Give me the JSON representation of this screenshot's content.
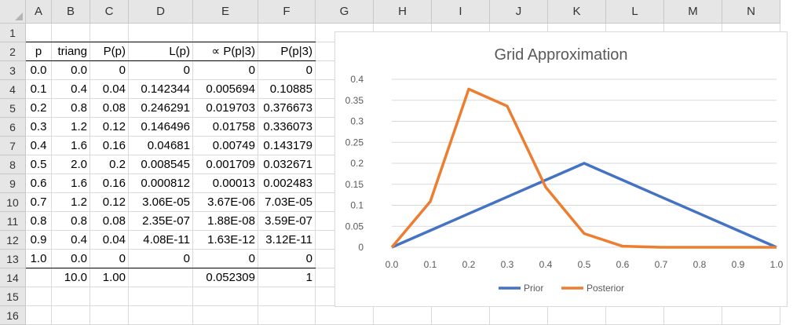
{
  "columns": [
    "A",
    "B",
    "C",
    "D",
    "E",
    "F",
    "G",
    "H",
    "I",
    "J",
    "K",
    "L",
    "M",
    "N"
  ],
  "rows": [
    "1",
    "2",
    "3",
    "4",
    "5",
    "6",
    "7",
    "8",
    "9",
    "10",
    "11",
    "12",
    "13",
    "14",
    "15",
    "16"
  ],
  "table": {
    "headers": [
      "p",
      "triang",
      "P(p)",
      "L(p)",
      "∝ P(p|3)",
      "P(p|3)"
    ],
    "data": [
      [
        "0.0",
        "0.0",
        "0",
        "0",
        "0",
        "0"
      ],
      [
        "0.1",
        "0.4",
        "0.04",
        "0.142344",
        "0.005694",
        "0.10885"
      ],
      [
        "0.2",
        "0.8",
        "0.08",
        "0.246291",
        "0.019703",
        "0.376673"
      ],
      [
        "0.3",
        "1.2",
        "0.12",
        "0.146496",
        "0.01758",
        "0.336073"
      ],
      [
        "0.4",
        "1.6",
        "0.16",
        "0.04681",
        "0.00749",
        "0.143179"
      ],
      [
        "0.5",
        "2.0",
        "0.2",
        "0.008545",
        "0.001709",
        "0.032671"
      ],
      [
        "0.6",
        "1.6",
        "0.16",
        "0.000812",
        "0.00013",
        "0.002483"
      ],
      [
        "0.7",
        "1.2",
        "0.12",
        "3.06E-05",
        "3.67E-06",
        "7.03E-05"
      ],
      [
        "0.8",
        "0.8",
        "0.08",
        "2.35E-07",
        "1.88E-08",
        "3.59E-07"
      ],
      [
        "0.9",
        "0.4",
        "0.04",
        "4.08E-11",
        "1.63E-12",
        "3.12E-11"
      ],
      [
        "1.0",
        "0.0",
        "0",
        "0",
        "0",
        "0"
      ]
    ],
    "totals": [
      "",
      "10.0",
      "1.00",
      "",
      "0.052309",
      "1"
    ]
  },
  "chart_data": {
    "type": "line",
    "title": "Grid Approximation",
    "x": [
      "0.0",
      "0.1",
      "0.2",
      "0.3",
      "0.4",
      "0.5",
      "0.6",
      "0.7",
      "0.8",
      "0.9",
      "1.0"
    ],
    "yticks": [
      "0",
      "0.05",
      "0.1",
      "0.15",
      "0.2",
      "0.25",
      "0.3",
      "0.35",
      "0.4"
    ],
    "ylim": [
      0,
      0.4
    ],
    "grid": true,
    "legend": "bottom",
    "series": [
      {
        "name": "Prior",
        "color": "#4472c4",
        "values": [
          0,
          0.04,
          0.08,
          0.12,
          0.16,
          0.2,
          0.16,
          0.12,
          0.08,
          0.04,
          0
        ]
      },
      {
        "name": "Posterior",
        "color": "#ed7d31",
        "values": [
          0,
          0.10885,
          0.376673,
          0.336073,
          0.143179,
          0.032671,
          0.002483,
          7.03e-05,
          3.59e-07,
          0,
          0
        ]
      }
    ]
  }
}
